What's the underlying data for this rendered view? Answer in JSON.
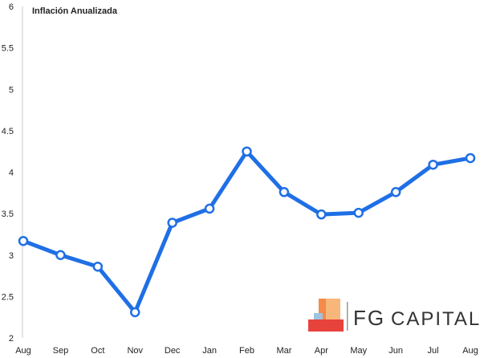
{
  "chart_data": {
    "type": "line",
    "title": "Inflación Anualizada",
    "xlabel": "",
    "ylabel": "",
    "categories": [
      "Aug",
      "Sep",
      "Oct",
      "Nov",
      "Dec",
      "Jan",
      "Feb",
      "Mar",
      "Apr",
      "May",
      "Jun",
      "Jul",
      "Aug"
    ],
    "values": [
      3.17,
      3.0,
      2.86,
      2.31,
      3.39,
      3.56,
      4.25,
      3.76,
      3.49,
      3.51,
      3.76,
      4.09,
      4.17
    ],
    "ylim": [
      2,
      6
    ],
    "yticks": [
      "2",
      "2.5",
      "3",
      "3.5",
      "4",
      "4.5",
      "5",
      "5.5",
      "6"
    ],
    "grid": false,
    "legend": "none",
    "line_color": "#1f6fe5",
    "marker_fill": "#ffffff"
  },
  "branding": {
    "logo_text_left": "FG",
    "logo_text_right": "CAPITAL",
    "logo_colors": [
      "#f58a4b",
      "#e8423c",
      "#f7b77a",
      "#9dc3e0"
    ]
  }
}
